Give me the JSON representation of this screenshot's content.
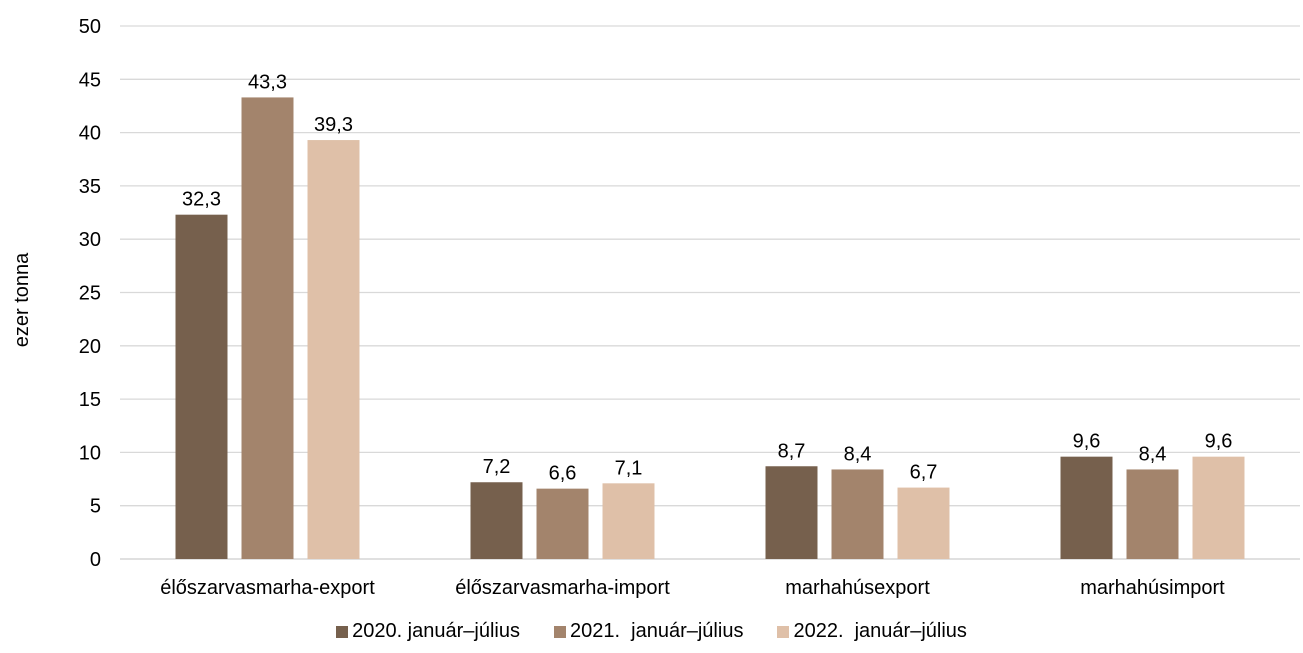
{
  "chart_data": {
    "type": "bar",
    "title": "",
    "xlabel": "",
    "ylabel": "ezer tonna",
    "ylim": [
      0,
      50
    ],
    "yticks": [
      "0",
      "5",
      "10",
      "15",
      "20",
      "25",
      "30",
      "35",
      "40",
      "45",
      "50"
    ],
    "grid": true,
    "legend_position": "bottom",
    "categories": [
      "élőszarvasmarha-export",
      "élőszarvasmarha-import",
      "marhahúsexport",
      "marhahúsimport"
    ],
    "series": [
      {
        "name": "2020. január–július",
        "color": "#76604D",
        "values": [
          32.3,
          7.2,
          8.7,
          9.6
        ],
        "labels": [
          "32,3",
          "7,2",
          "8,7",
          "9,6"
        ]
      },
      {
        "name": "2021.  január–július",
        "color": "#A3846C",
        "values": [
          43.3,
          6.6,
          8.4,
          8.4
        ],
        "labels": [
          "43,3",
          "6,6",
          "8,4",
          "8,4"
        ]
      },
      {
        "name": "2022.  január–július",
        "color": "#DFC0A8",
        "values": [
          39.3,
          7.1,
          6.7,
          9.6
        ],
        "labels": [
          "39,3",
          "7,1",
          "6,7",
          "9,6"
        ]
      }
    ]
  }
}
